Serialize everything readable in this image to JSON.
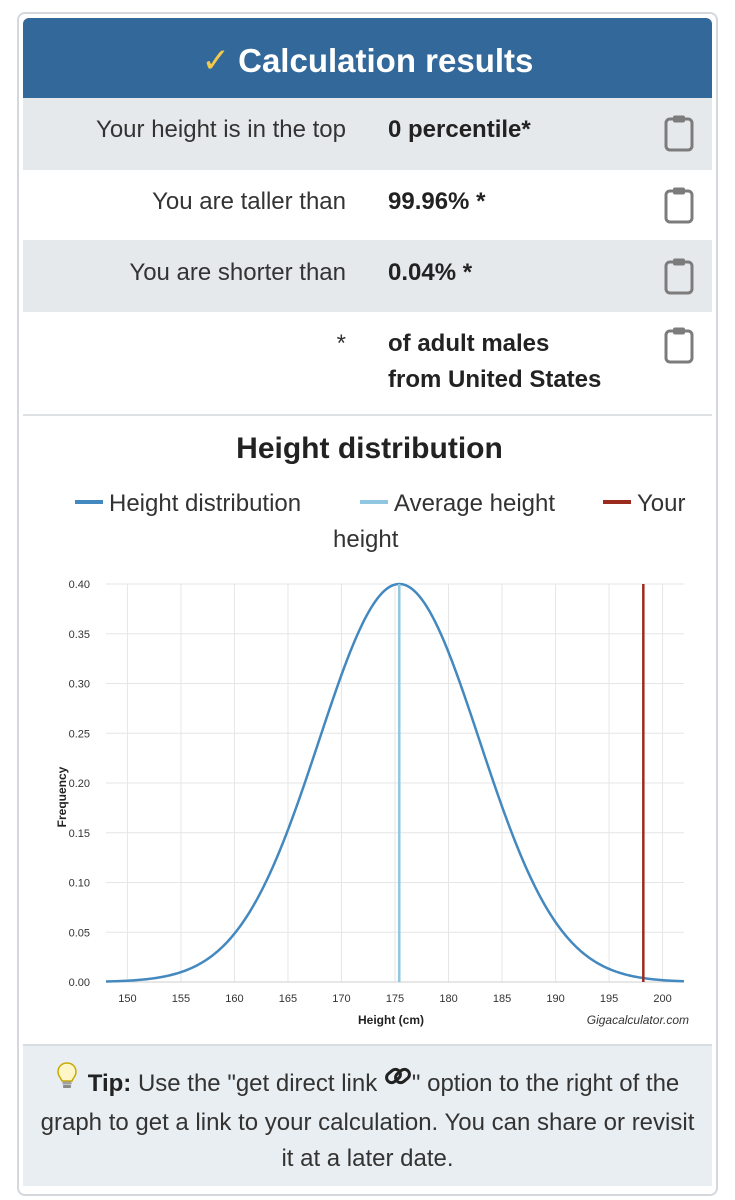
{
  "header": {
    "title": "Calculation results",
    "icon": "checkmark-icon"
  },
  "results": [
    {
      "label": "Your height is in the top",
      "value": "0 percentile*"
    },
    {
      "label": "You are taller than",
      "value": "99.96% *"
    },
    {
      "label": "You are shorter than",
      "value": "0.04% *"
    }
  ],
  "footnote": {
    "mark": "*",
    "line1": "of adult males",
    "line2": "from United States"
  },
  "chart_legend": {
    "distribution": "Height distribution",
    "average": "Average height",
    "your_part1": "Your",
    "your_part2": "height"
  },
  "chart_data": {
    "type": "line",
    "title": "Height distribution",
    "xlabel": "Height (cm)",
    "ylabel": "Frequency",
    "xlim": [
      148,
      202
    ],
    "ylim": [
      0,
      0.4
    ],
    "x_ticks": [
      "150",
      "155",
      "160",
      "165",
      "170",
      "175",
      "180",
      "185",
      "190",
      "195",
      "200"
    ],
    "y_ticks": [
      "0.00",
      "0.05",
      "0.10",
      "0.15",
      "0.20",
      "0.25",
      "0.30",
      "0.35",
      "0.40"
    ],
    "series": [
      {
        "name": "Height distribution",
        "distribution": "normal",
        "mean": 175.4,
        "peak": 0.4,
        "sd": 7.5,
        "color": "#4389bf"
      }
    ],
    "average_height": 175.4,
    "your_height": 198.2,
    "colors": {
      "distribution": "#4389bf",
      "average": "#91c6e0",
      "your": "#9b2b1e"
    },
    "grid": true,
    "credit": "Gigacalculator.com"
  },
  "tip": {
    "icon": "lightbulb-icon",
    "label": "Tip:",
    "text_before": "Use the \"get direct link ",
    "link_icon": "link-icon",
    "text_after": "\" option to the right of the graph to get a link to your calculation. You can share or revisit it at a later date."
  }
}
